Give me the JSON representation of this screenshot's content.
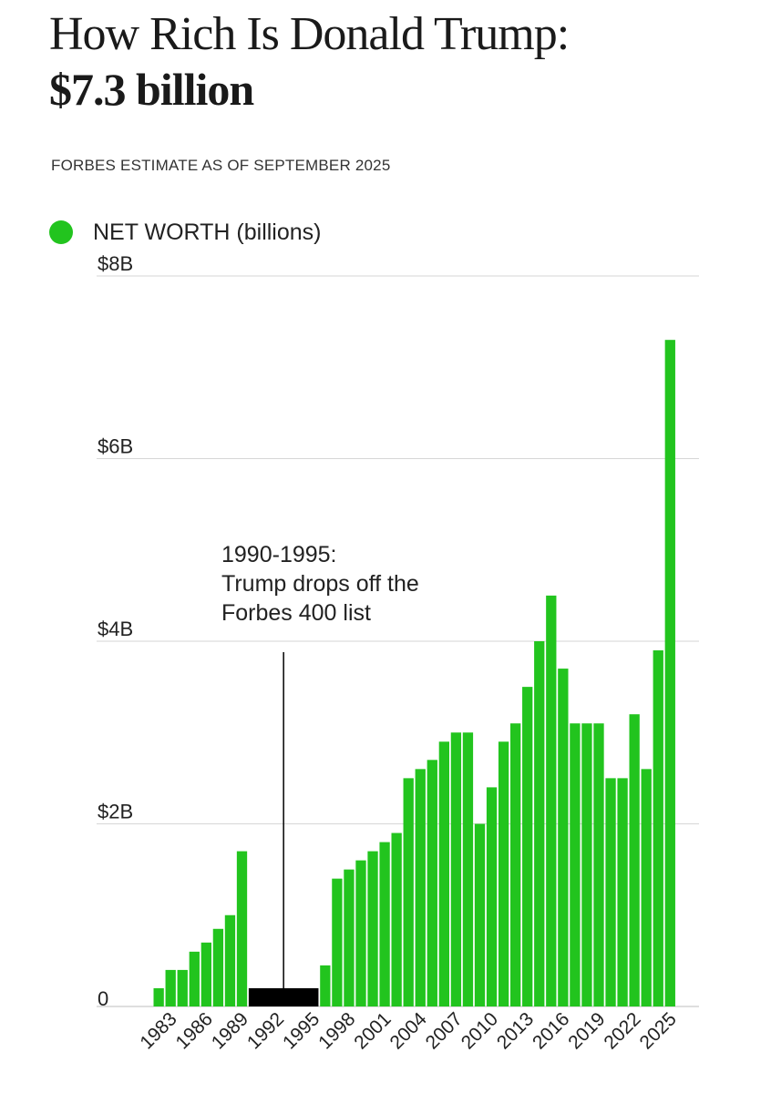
{
  "header": {
    "title": "How Rich Is Donald Trump:",
    "value": "$7.3 billion",
    "subtitle": "FORBES ESTIMATE AS OF SEPTEMBER 2025"
  },
  "legend": {
    "label": "NET WORTH (billions)",
    "color": "#22c41e"
  },
  "colors": {
    "bar": "#22c41e",
    "gap_bar": "#000000",
    "grid": "#d6d6d6"
  },
  "chart_data": {
    "type": "bar",
    "title": "How Rich Is Donald Trump:",
    "subtitle": "FORBES ESTIMATE AS OF SEPTEMBER 2025",
    "xlabel": "",
    "ylabel": "",
    "ylim": [
      0,
      8
    ],
    "grid": true,
    "legend_position": "top-left",
    "y_ticks": [
      {
        "value": 0,
        "label": "0"
      },
      {
        "value": 2,
        "label": "$2B"
      },
      {
        "value": 4,
        "label": "$4B"
      },
      {
        "value": 6,
        "label": "$6B"
      },
      {
        "value": 8,
        "label": "$8B"
      }
    ],
    "x_tick_labels": [
      "1983",
      "1986",
      "1989",
      "1992",
      "1995",
      "1998",
      "2001",
      "2004",
      "2007",
      "2010",
      "2013",
      "2016",
      "2019",
      "2022",
      "2025"
    ],
    "categories": [
      1982,
      1983,
      1984,
      1985,
      1986,
      1987,
      1988,
      1989,
      1996,
      1997,
      1998,
      1999,
      2000,
      2001,
      2002,
      2003,
      2004,
      2005,
      2006,
      2007,
      2008,
      2009,
      2010,
      2011,
      2012,
      2013,
      2014,
      2015,
      2016,
      2017,
      2018,
      2019,
      2020,
      2021,
      2022,
      2023,
      2024,
      2025
    ],
    "series": [
      {
        "name": "NET WORTH (billions)",
        "values": [
          0.2,
          0.4,
          0.4,
          0.6,
          0.7,
          0.85,
          1.0,
          1.7,
          0.45,
          1.4,
          1.5,
          1.6,
          1.7,
          1.8,
          1.9,
          2.5,
          2.6,
          2.7,
          2.9,
          3.0,
          3.0,
          2.0,
          2.4,
          2.9,
          3.1,
          3.5,
          4.0,
          4.5,
          3.7,
          3.1,
          3.1,
          3.1,
          2.5,
          2.5,
          3.2,
          2.6,
          3.9,
          7.3
        ]
      }
    ],
    "gap": {
      "from": 1990,
      "to": 1995,
      "value": 0.2
    },
    "annotation": {
      "lines": [
        "1990-1995:",
        "Trump drops off the",
        "Forbes 400 list"
      ],
      "year": 1992.5
    }
  }
}
